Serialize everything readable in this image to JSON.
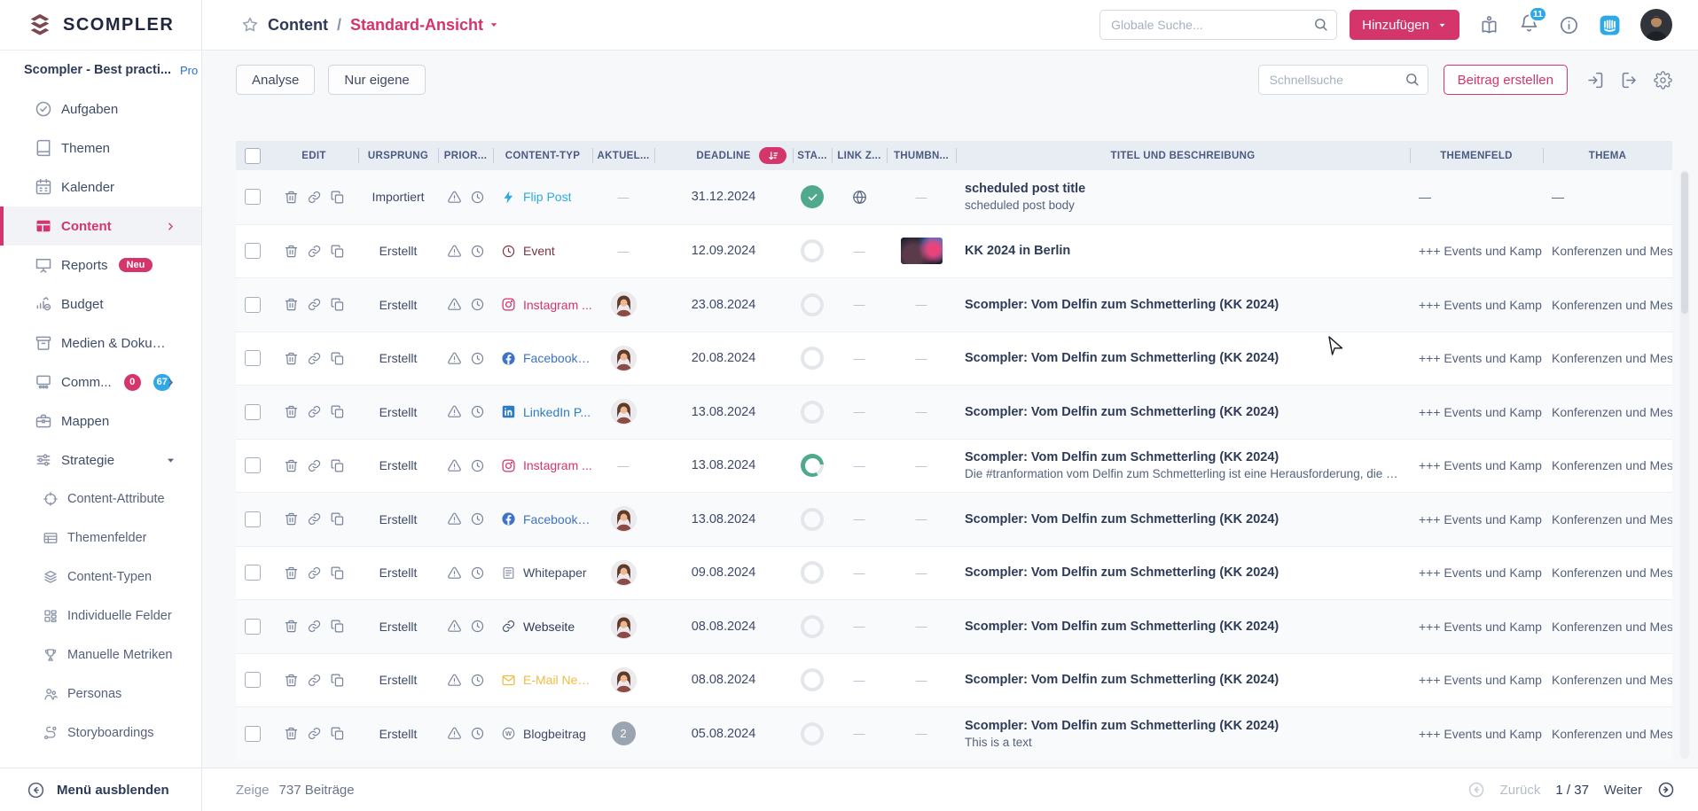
{
  "colors": {
    "accent": "#d4356a",
    "link_blue": "#2ea9e5",
    "green": "#4fa98c",
    "badge_blue": "#2ea9e5",
    "header_bg": "#e8ecf3"
  },
  "brand": {
    "name": "SCOMPLER"
  },
  "workspace": {
    "name": "Scompler - Best practi...",
    "badge": "Pro"
  },
  "sidebar": {
    "items": [
      {
        "id": "aufgaben",
        "label": "Aufgaben",
        "icon": "check-circle"
      },
      {
        "id": "themen",
        "label": "Themen",
        "icon": "book"
      },
      {
        "id": "kalender",
        "label": "Kalender",
        "icon": "calendar"
      },
      {
        "id": "content",
        "label": "Content",
        "icon": "table-cells",
        "active": true,
        "chevron": "chevron-right"
      },
      {
        "id": "reports",
        "label": "Reports",
        "icon": "presentation",
        "badge": "Neu"
      },
      {
        "id": "budget",
        "label": "Budget",
        "icon": "chart-coin"
      },
      {
        "id": "medien-dokumente",
        "label": "Medien & Dokumente",
        "icon": "archive"
      },
      {
        "id": "community",
        "label": "Comm...",
        "icon": "community",
        "badges": [
          {
            "text": "0",
            "color": "#d4356a"
          },
          {
            "text": "67",
            "color": "#2ea9e5"
          }
        ],
        "chevron": "chevron-right"
      },
      {
        "id": "mappen",
        "label": "Mappen",
        "icon": "briefcase"
      },
      {
        "id": "strategie",
        "label": "Strategie",
        "icon": "sliders",
        "chevron": "caret-down-sm"
      },
      {
        "id": "content-attribute",
        "label": "Content-Attribute",
        "icon": "target",
        "sub": true
      },
      {
        "id": "themenfelder",
        "label": "Themenfelder",
        "icon": "grid-table",
        "sub": true
      },
      {
        "id": "content-typen",
        "label": "Content-Typen",
        "icon": "layers",
        "sub": true
      },
      {
        "id": "individuelle-felder",
        "label": "Individuelle Felder",
        "icon": "blocks",
        "sub": true
      },
      {
        "id": "manuelle-metriken",
        "label": "Manuelle Metriken",
        "icon": "trophy",
        "sub": true
      },
      {
        "id": "personas",
        "label": "Personas",
        "icon": "personas",
        "sub": true
      },
      {
        "id": "storyboardings",
        "label": "Storyboardings",
        "icon": "route",
        "sub": true
      }
    ],
    "collapse_label": "Menü ausblenden"
  },
  "header": {
    "breadcrumb": {
      "section": "Content",
      "separator": "/",
      "view": "Standard-Ansicht"
    },
    "global_search_placeholder": "Globale Suche...",
    "add_button": "Hinzufügen",
    "notification_count": "11"
  },
  "toolbar": {
    "analyse": "Analyse",
    "nur_eigene": "Nur eigene",
    "quick_search_placeholder": "Schnellsuche",
    "create_post": "Beitrag erstellen"
  },
  "table": {
    "columns": [
      {
        "key": "check",
        "type": "checkbox"
      },
      {
        "key": "edit",
        "label": "EDIT"
      },
      {
        "key": "ursprung",
        "label": "URSPRUNG"
      },
      {
        "key": "prior",
        "label": "PRIOR..."
      },
      {
        "key": "contenttyp",
        "label": "CONTENT-TYP"
      },
      {
        "key": "aktuell",
        "label": "AKTUEL..."
      },
      {
        "key": "deadline",
        "label": "DEADLINE",
        "sort": true
      },
      {
        "key": "status",
        "label": "STA..."
      },
      {
        "key": "linkz",
        "label": "LINK Z..."
      },
      {
        "key": "thumbnail",
        "label": "THUMBN..."
      },
      {
        "key": "titel",
        "label": "TITEL UND BESCHREIBUNG"
      },
      {
        "key": "themenfeld",
        "label": "THEMENFELD"
      },
      {
        "key": "thema",
        "label": "THEMA"
      }
    ],
    "rows": [
      {
        "ursprung": "Importiert",
        "type": {
          "label": "Flip Post",
          "icon": "flip",
          "color": "#2ea9e5"
        },
        "aktuell": {
          "kind": "dash"
        },
        "deadline": "31.12.2024",
        "status": "done",
        "link": "globe",
        "thumb": "dash",
        "title": "scheduled post title",
        "subtitle": "scheduled post body",
        "themenfeld": "—",
        "thema": "—"
      },
      {
        "ursprung": "Erstellt",
        "type": {
          "label": "Event",
          "icon": "clock",
          "color": "#7a3441"
        },
        "aktuell": {
          "kind": "dash"
        },
        "deadline": "12.09.2024",
        "status": "open",
        "link": "dash",
        "thumb": "image",
        "title": "KK 2024 in Berlin",
        "subtitle": "",
        "themenfeld": "+++ Events und Kamp...",
        "thema": "Konferenzen und Mes..."
      },
      {
        "ursprung": "Erstellt",
        "type": {
          "label": "Instagram ...",
          "icon": "instagram",
          "color": "#d6336c"
        },
        "aktuell": {
          "kind": "avatar"
        },
        "deadline": "23.08.2024",
        "status": "open",
        "link": "dash",
        "thumb": "dash",
        "title": "Scompler: Vom Delfin zum Schmetterling (KK 2024)",
        "subtitle": "",
        "themenfeld": "+++ Events und Kamp...",
        "thema": "Konferenzen und Mes..."
      },
      {
        "ursprung": "Erstellt",
        "type": {
          "label": "Facebook A...",
          "icon": "facebook",
          "color": "#3d72c8"
        },
        "aktuell": {
          "kind": "avatar"
        },
        "deadline": "20.08.2024",
        "status": "open",
        "link": "dash",
        "thumb": "dash",
        "title": "Scompler: Vom Delfin zum Schmetterling (KK 2024)",
        "subtitle": "",
        "themenfeld": "+++ Events und Kamp...",
        "thema": "Konferenzen und Mes..."
      },
      {
        "ursprung": "Erstellt",
        "type": {
          "label": "LinkedIn P...",
          "icon": "linkedin",
          "color": "#2e7cc3"
        },
        "aktuell": {
          "kind": "avatar"
        },
        "deadline": "13.08.2024",
        "status": "open",
        "link": "dash",
        "thumb": "dash",
        "title": "Scompler: Vom Delfin zum Schmetterling (KK 2024)",
        "subtitle": "",
        "themenfeld": "+++ Events und Kamp...",
        "thema": "Konferenzen und Mes..."
      },
      {
        "ursprung": "Erstellt",
        "type": {
          "label": "Instagram ...",
          "icon": "instagram",
          "color": "#d6336c"
        },
        "aktuell": {
          "kind": "dash"
        },
        "deadline": "13.08.2024",
        "status": "progress",
        "link": "dash",
        "thumb": "dash",
        "title": "Scompler: Vom Delfin zum Schmetterling (KK 2024)",
        "subtitle": "Die #tranformation vom Delfin zum Schmetterling ist eine Herausforderung, die die gesamte...",
        "themenfeld": "+++ Events und Kamp...",
        "thema": "Konferenzen und Mes..."
      },
      {
        "ursprung": "Erstellt",
        "type": {
          "label": "Facebook P...",
          "icon": "facebook",
          "color": "#3d72c8"
        },
        "aktuell": {
          "kind": "avatar"
        },
        "deadline": "13.08.2024",
        "status": "open",
        "link": "dash",
        "thumb": "dash",
        "title": "Scompler: Vom Delfin zum Schmetterling (KK 2024)",
        "subtitle": "",
        "themenfeld": "+++ Events und Kamp...",
        "thema": "Konferenzen und Mes..."
      },
      {
        "ursprung": "Erstellt",
        "type": {
          "label": "Whitepaper",
          "icon": "whitepaper",
          "color": "#3d4a66",
          "icon_color": "#8a94a8"
        },
        "aktuell": {
          "kind": "avatar"
        },
        "deadline": "09.08.2024",
        "status": "open",
        "link": "dash",
        "thumb": "dash",
        "title": "Scompler: Vom Delfin zum Schmetterling (KK 2024)",
        "subtitle": "",
        "themenfeld": "+++ Events und Kamp...",
        "thema": "Konferenzen und Mes..."
      },
      {
        "ursprung": "Erstellt",
        "type": {
          "label": "Webseite",
          "icon": "chainlink",
          "color": "#2d3a58",
          "icon_color": "#44506b"
        },
        "aktuell": {
          "kind": "avatar"
        },
        "deadline": "08.08.2024",
        "status": "open",
        "link": "dash",
        "thumb": "dash",
        "title": "Scompler: Vom Delfin zum Schmetterling (KK 2024)",
        "subtitle": "",
        "themenfeld": "+++ Events und Kamp...",
        "thema": "Konferenzen und Mes..."
      },
      {
        "ursprung": "Erstellt",
        "type": {
          "label": "E-Mail New...",
          "icon": "email",
          "color": "#eebc43"
        },
        "aktuell": {
          "kind": "avatar"
        },
        "deadline": "08.08.2024",
        "status": "open",
        "link": "dash",
        "thumb": "dash",
        "title": "Scompler: Vom Delfin zum Schmetterling (KK 2024)",
        "subtitle": "",
        "themenfeld": "+++ Events und Kamp...",
        "thema": "Konferenzen und Mes..."
      },
      {
        "ursprung": "Erstellt",
        "type": {
          "label": "Blogbeitrag",
          "icon": "wordpress",
          "color": "#3d4a66",
          "icon_color": "#7d8798"
        },
        "aktuell": {
          "kind": "badge",
          "value": "2"
        },
        "deadline": "05.08.2024",
        "status": "open",
        "link": "dash",
        "thumb": "dash",
        "title": "Scompler: Vom Delfin zum Schmetterling (KK 2024)",
        "subtitle": "This is a text",
        "themenfeld": "+++ Events und Kamp...",
        "thema": "Konferenzen und Mes..."
      }
    ],
    "dash": "—"
  },
  "footer": {
    "zeige": "Zeige",
    "count_label": "737 Beiträge",
    "prev": "Zurück",
    "page": "1 / 37",
    "next": "Weiter"
  }
}
